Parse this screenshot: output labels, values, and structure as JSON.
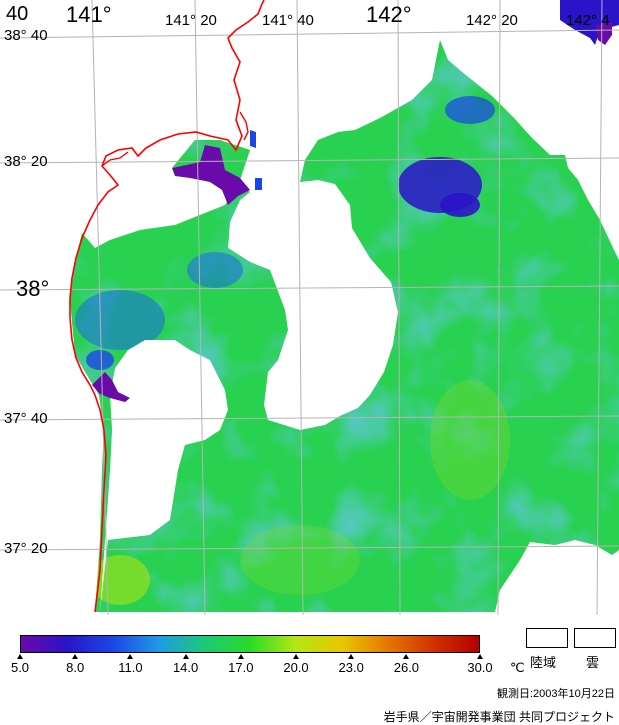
{
  "map": {
    "lon_labels": [
      "141°",
      "141° 20",
      "141° 40",
      "142°",
      "142° 20",
      "142° 4"
    ],
    "lat_labels": [
      "38° 40",
      "38° 20",
      "38°",
      "37° 40",
      "37° 20"
    ],
    "top_left_fragment": "40",
    "coastline_color": "#ff0000",
    "grid_color": "#b4b4b4",
    "cloud_color": "#ffffff"
  },
  "colorbar": {
    "ticks": [
      "5.0",
      "8.0",
      "11.0",
      "14.0",
      "17.0",
      "20.0",
      "23.0",
      "26.0",
      "30.0"
    ],
    "unit": "℃",
    "colors": [
      "#6a0aaa",
      "#2a14c8",
      "#1a46e6",
      "#1e9ae6",
      "#1ec878",
      "#28dc28",
      "#b4e614",
      "#e6c800",
      "#e67800",
      "#d23200",
      "#b40000"
    ],
    "min": 5.0,
    "max": 30.0
  },
  "legend": {
    "land_label": "陸域",
    "cloud_label": "雲"
  },
  "observation_date": "観測日:2003年10月22日",
  "credit": "岩手県／宇宙開発事業団 共同プロジェクト"
}
